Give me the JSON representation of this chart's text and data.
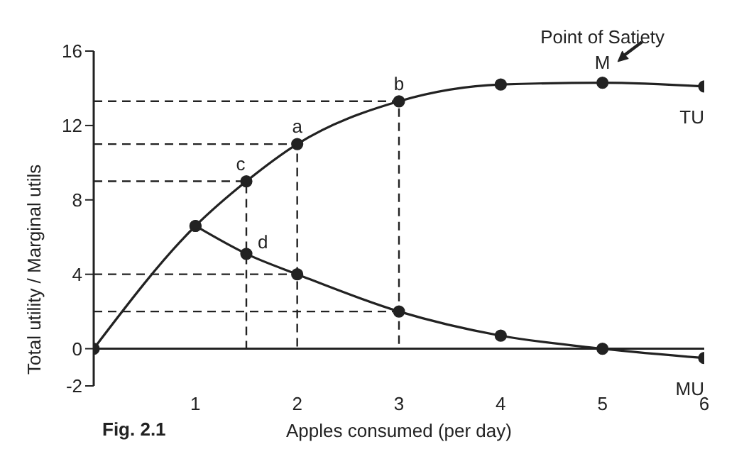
{
  "chart_data": {
    "type": "line",
    "xlabel": "Apples consumed (per day)",
    "ylabel": "Total utility / Marginal utils",
    "xlim": [
      0,
      6
    ],
    "xticks": [
      1,
      2,
      3,
      4,
      5,
      6
    ],
    "ylim": [
      -2,
      16
    ],
    "yticks": [
      -2,
      0,
      4,
      8,
      12,
      16
    ],
    "marker": "circle",
    "line_style": "solid",
    "series": [
      {
        "name": "TU",
        "color": "#222222",
        "x": [
          0,
          1,
          1.5,
          2,
          3,
          4,
          5,
          6
        ],
        "values": [
          0,
          6.6,
          9,
          11,
          13.3,
          14.2,
          14.3,
          14.1
        ]
      },
      {
        "name": "MU",
        "color": "#222222",
        "x": [
          1,
          1.5,
          2,
          3,
          4,
          5,
          6
        ],
        "values": [
          6.6,
          5.1,
          4,
          2,
          0.7,
          0,
          -0.5
        ]
      },
      {
        "color": "#222222",
        "marker": "none",
        "line_style": "dashed",
        "x": [
          0,
          3,
          3
        ],
        "values": [
          13.3,
          13.3,
          0
        ]
      },
      {
        "color": "#222222",
        "marker": "none",
        "line_style": "dashed",
        "x": [
          0,
          2,
          2
        ],
        "values": [
          11,
          11,
          0
        ]
      },
      {
        "color": "#222222",
        "marker": "none",
        "line_style": "dashed",
        "x": [
          0,
          1.5,
          1.5
        ],
        "values": [
          9,
          9,
          0
        ]
      },
      {
        "color": "#222222",
        "marker": "none",
        "line_style": "dashed",
        "x": [
          0,
          2
        ],
        "values": [
          4,
          4
        ]
      },
      {
        "color": "#222222",
        "marker": "none",
        "line_style": "dashed",
        "x": [
          0,
          3
        ],
        "values": [
          2,
          2
        ]
      }
    ],
    "ref_lines": [
      {
        "axis": "y",
        "value": 0,
        "color": "#222222",
        "line_style": "solid"
      }
    ],
    "annotations": [
      {
        "text": "a",
        "x": 2,
        "y": 11
      },
      {
        "text": "b",
        "x": 3,
        "y": 13.3
      },
      {
        "text": "c",
        "x": 1.5,
        "y": 9
      },
      {
        "text": "d",
        "x": 1.5,
        "y": 5.1
      },
      {
        "text": "M",
        "x": 5,
        "y": 14.3
      },
      {
        "text": "Point of Satiety",
        "x": 5,
        "y": 14.3
      },
      "Fig. 2.1"
    ]
  }
}
